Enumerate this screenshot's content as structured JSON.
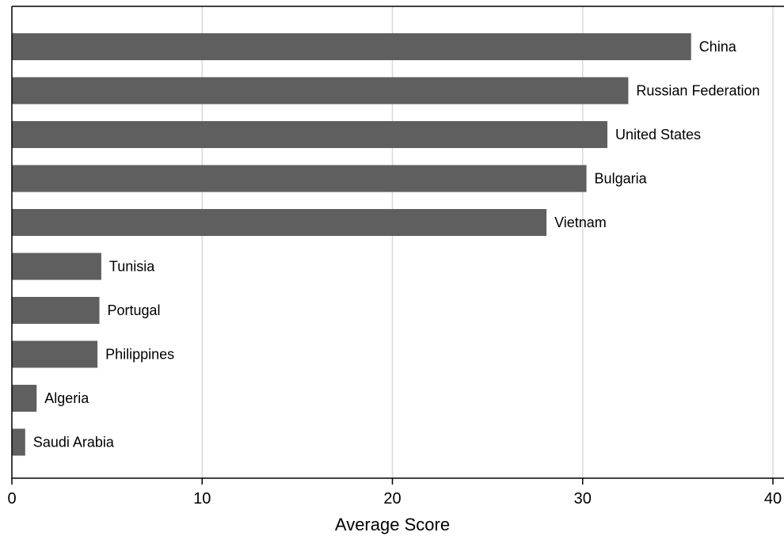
{
  "chart_data": {
    "type": "bar",
    "orientation": "horizontal",
    "title": "",
    "xlabel": "Average Score",
    "ylabel": "",
    "xlim": [
      0,
      40
    ],
    "xticks": [
      0,
      10,
      20,
      30,
      40
    ],
    "grid": "vertical",
    "bar_color": "#5f5f5f",
    "grid_color": "#d9d9d9",
    "categories": [
      "China",
      "Russian Federation",
      "United States",
      "Bulgaria",
      "Vietnam",
      "Tunisia",
      "Portugal",
      "Philippines",
      "Algeria",
      "Saudi Arabia"
    ],
    "values": [
      35.7,
      32.4,
      31.3,
      30.2,
      28.1,
      4.7,
      4.6,
      4.5,
      1.3,
      0.7
    ]
  }
}
